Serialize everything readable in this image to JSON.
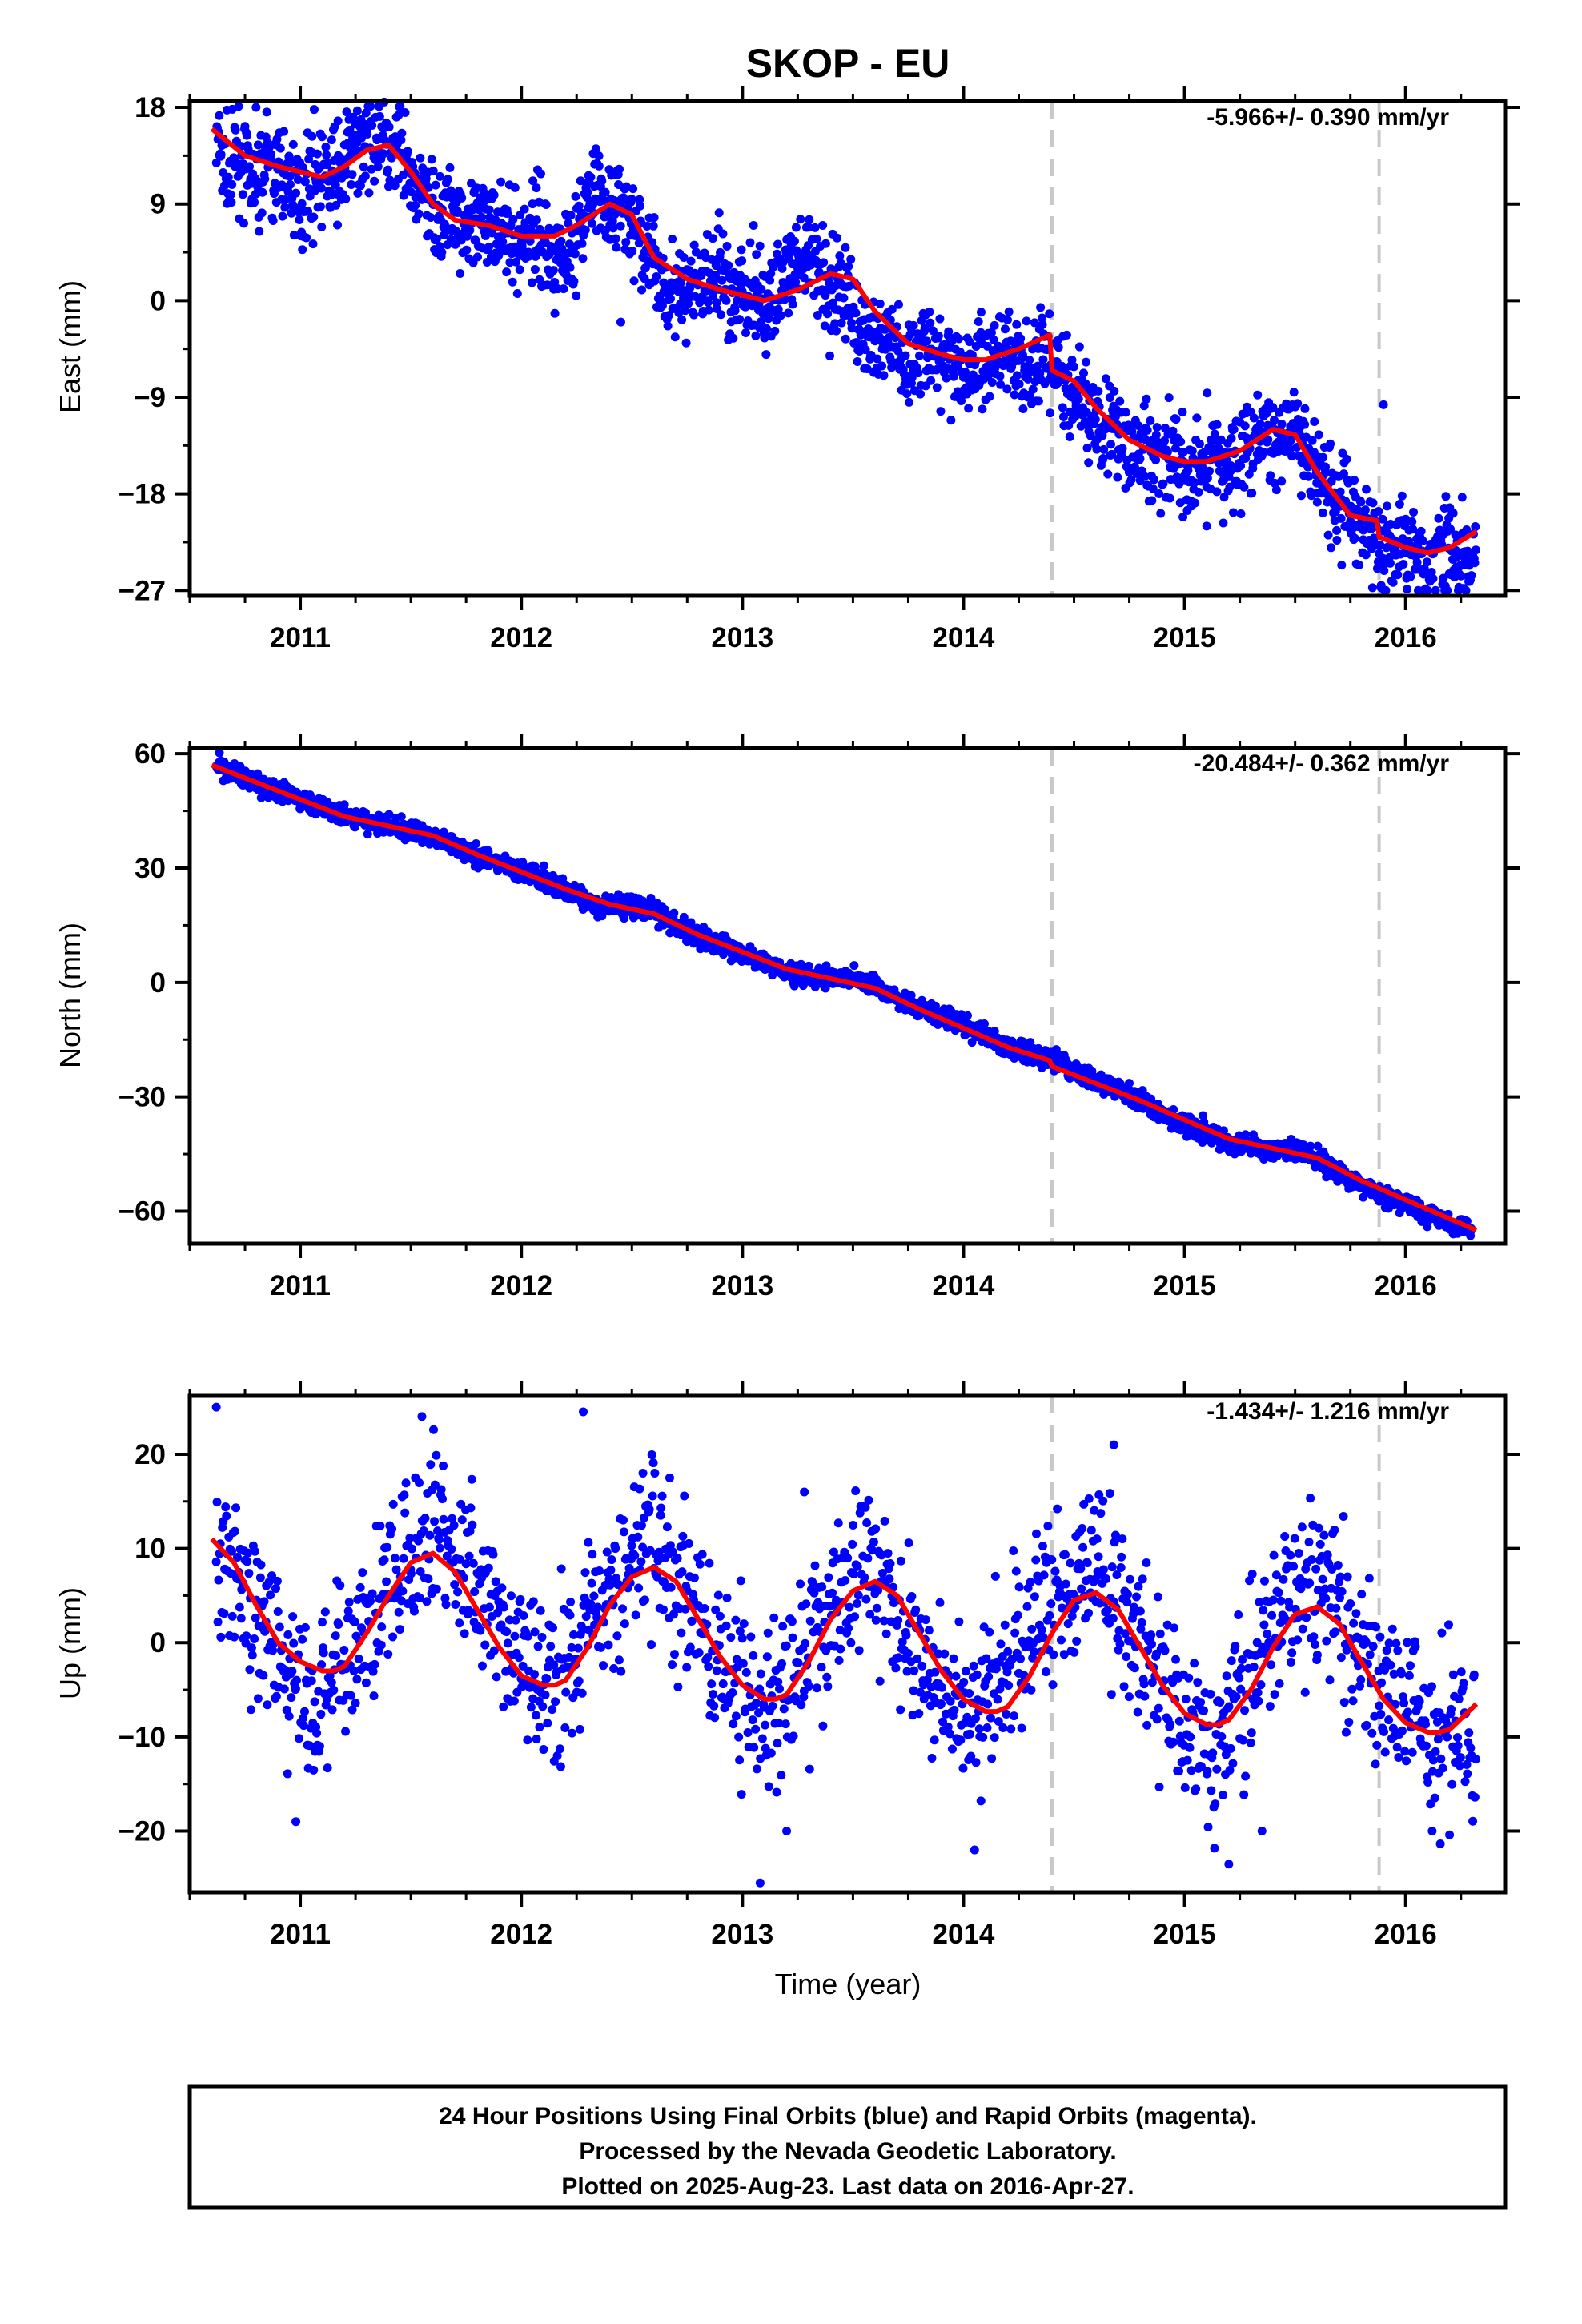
{
  "title": "SKOP - EU",
  "xlabel": "Time (year)",
  "footer": {
    "line1": "24 Hour Positions Using Final Orbits (blue) and Rapid Orbits (magenta).",
    "line2": "Processed by the Nevada Geodetic Laboratory.",
    "line3": "Plotted on 2025-Aug-23. Last data on 2016-Apr-27."
  },
  "colors": {
    "points": "#0000ff",
    "model": "#ff0000",
    "breaks": "#c8c8c8",
    "axes": "#000000"
  },
  "chart_data": [
    {
      "type": "scatter",
      "ylabel": "East (mm)",
      "rate": "-5.966+/- 0.390 mm/yr",
      "xlim": [
        2010.5,
        2016.45
      ],
      "ylim": [
        -27.5,
        18.6
      ],
      "yticks": [
        18,
        9,
        0,
        -9,
        -18,
        -27
      ],
      "ytick_labels": [
        "18",
        "9",
        "0",
        "−9",
        "−18",
        "−27"
      ],
      "xticks": [
        2011,
        2012,
        2013,
        2014,
        2015,
        2016
      ],
      "xtick_labels": [
        "2011",
        "2012",
        "2013",
        "2014",
        "2015",
        "2016"
      ],
      "breaks": [
        2014.4,
        2015.88
      ],
      "series": [
        {
          "kind": "points",
          "x": [
            2010.62,
            2010.65,
            2010.68,
            2010.72,
            2010.76,
            2010.8,
            2010.85,
            2010.9,
            2010.95,
            2011.0,
            2011.05,
            2011.1,
            2011.18,
            2011.25,
            2011.3,
            2011.36,
            2011.4,
            2011.45,
            2011.5,
            2011.55,
            2011.6,
            2011.65,
            2011.7,
            2011.75,
            2011.8,
            2011.85,
            2011.9,
            2011.95,
            2012.0,
            2012.05,
            2012.1,
            2012.15,
            2012.2,
            2012.25,
            2012.3,
            2012.35,
            2012.4,
            2012.45,
            2012.5,
            2012.55,
            2012.6,
            2012.65,
            2012.7,
            2012.75,
            2012.8,
            2012.85,
            2012.9,
            2012.95,
            2013.0,
            2013.05,
            2013.1,
            2013.15,
            2013.2,
            2013.25,
            2013.3,
            2013.35,
            2013.4,
            2013.45,
            2013.5,
            2013.55,
            2013.6,
            2013.65,
            2013.7,
            2013.75,
            2013.8,
            2013.85,
            2013.9,
            2013.95,
            2014.0,
            2014.05,
            2014.1,
            2014.15,
            2014.2,
            2014.25,
            2014.3,
            2014.35,
            2014.42,
            2014.47,
            2014.52,
            2014.57,
            2014.62,
            2014.67,
            2014.72,
            2014.77,
            2014.82,
            2014.87,
            2014.92,
            2014.97,
            2015.02,
            2015.07,
            2015.12,
            2015.17,
            2015.22,
            2015.27,
            2015.32,
            2015.37,
            2015.42,
            2015.47,
            2015.52,
            2015.57,
            2015.62,
            2015.67,
            2015.72,
            2015.77,
            2015.82,
            2015.87,
            2015.9,
            2015.95,
            2016.0,
            2016.05,
            2016.1,
            2016.15,
            2016.2,
            2016.25,
            2016.3,
            2016.32
          ],
          "y": [
            15,
            13,
            11,
            14,
            12,
            10,
            13,
            11,
            12,
            9,
            12,
            11,
            12,
            14,
            15,
            16,
            13,
            14,
            11,
            10,
            9,
            8,
            8,
            7,
            6,
            8,
            7,
            6,
            5,
            7,
            6,
            4,
            5,
            6,
            9,
            10,
            8,
            9,
            7,
            5,
            3,
            2,
            1,
            0,
            2,
            1,
            3,
            0,
            1,
            0,
            -1,
            1,
            3,
            2,
            4,
            3,
            1,
            2,
            -1,
            -3,
            -4,
            -3,
            -5,
            -6,
            -4,
            -5,
            -6,
            -5,
            -7,
            -6,
            -6,
            -5,
            -4,
            -6,
            -7,
            -5,
            -7,
            -8,
            -9,
            -10,
            -11,
            -12,
            -13,
            -14,
            -14,
            -15,
            -14,
            -15,
            -17,
            -15,
            -14,
            -16,
            -15,
            -14,
            -13,
            -12,
            -14,
            -12,
            -13,
            -15,
            -16,
            -18,
            -19,
            -20,
            -21,
            -22,
            -23,
            -24,
            -22,
            -23,
            -25,
            -23,
            -22,
            -24,
            -23,
            -21
          ],
          "outliers": [
            [
              2015.9,
              -9.7
            ],
            [
              2010.8,
              18
            ],
            [
              2011.38,
              18.5
            ],
            [
              2012.45,
              -2
            ],
            [
              2013.05,
              7
            ],
            [
              2015.1,
              -21
            ]
          ]
        },
        {
          "kind": "model",
          "x": [
            2010.6,
            2010.75,
            2010.9,
            2011.0,
            2011.1,
            2011.2,
            2011.3,
            2011.4,
            2011.5,
            2011.6,
            2011.7,
            2011.85,
            2012.0,
            2012.15,
            2012.25,
            2012.4,
            2012.5,
            2012.6,
            2012.75,
            2012.9,
            2013.0,
            2013.1,
            2013.25,
            2013.4,
            2013.5,
            2013.6,
            2013.75,
            2013.9,
            2014.0,
            2014.1,
            2014.25,
            2014.39,
            2014.4,
            2014.5,
            2014.6,
            2014.75,
            2014.9,
            2015.0,
            2015.1,
            2015.25,
            2015.4,
            2015.5,
            2015.6,
            2015.75,
            2015.87,
            2015.88,
            2016.0,
            2016.1,
            2016.2,
            2016.32
          ],
          "y": [
            16,
            13.5,
            12.5,
            12,
            11.5,
            12.5,
            14,
            14.5,
            12,
            9,
            7.5,
            7,
            6,
            6,
            7,
            9,
            8,
            4,
            2,
            1,
            0.5,
            0,
            1,
            2.5,
            2,
            -1,
            -4,
            -5,
            -5.5,
            -5.5,
            -4.5,
            -3.2,
            -6.5,
            -7.5,
            -10,
            -13,
            -14.5,
            -15,
            -15,
            -14,
            -12,
            -12.5,
            -16,
            -20,
            -20.5,
            -22,
            -23,
            -23.5,
            -23,
            -21.5
          ]
        }
      ]
    },
    {
      "type": "scatter",
      "ylabel": "North (mm)",
      "rate": "-20.484+/- 0.362 mm/yr",
      "xlim": [
        2010.5,
        2016.45
      ],
      "ylim": [
        -68.5,
        61.5
      ],
      "yticks": [
        60,
        30,
        0,
        -30,
        -60
      ],
      "ytick_labels": [
        "60",
        "30",
        "0",
        "−30",
        "−60"
      ],
      "xticks": [
        2011,
        2012,
        2013,
        2014,
        2015,
        2016
      ],
      "xtick_labels": [
        "2011",
        "2012",
        "2013",
        "2014",
        "2015",
        "2016"
      ],
      "breaks": [
        2014.4,
        2015.88
      ],
      "series": [
        {
          "kind": "points",
          "x": [
            2010.62,
            2010.7,
            2010.8,
            2010.9,
            2011.0,
            2011.1,
            2011.2,
            2011.3,
            2011.4,
            2011.5,
            2011.6,
            2011.7,
            2011.8,
            2011.9,
            2012.0,
            2012.1,
            2012.2,
            2012.3,
            2012.4,
            2012.5,
            2012.6,
            2012.7,
            2012.8,
            2012.9,
            2013.0,
            2013.1,
            2013.2,
            2013.3,
            2013.4,
            2013.5,
            2013.6,
            2013.7,
            2013.8,
            2013.9,
            2014.0,
            2014.1,
            2014.2,
            2014.3,
            2014.4,
            2014.5,
            2014.6,
            2014.7,
            2014.8,
            2014.9,
            2015.0,
            2015.1,
            2015.2,
            2015.3,
            2015.4,
            2015.5,
            2015.6,
            2015.7,
            2015.8,
            2015.9,
            2016.0,
            2016.1,
            2016.2,
            2016.3
          ],
          "y": [
            57,
            55,
            52,
            50,
            48,
            46,
            44,
            42,
            41,
            40,
            38,
            36,
            33,
            31,
            29,
            27,
            24,
            21,
            20,
            20,
            19,
            15,
            12,
            10,
            8,
            5,
            3,
            2,
            1,
            1,
            -1,
            -4,
            -7,
            -9,
            -11,
            -14,
            -17,
            -19,
            -20,
            -23,
            -26,
            -28,
            -31,
            -34,
            -37,
            -39,
            -42,
            -43,
            -44,
            -44,
            -46,
            -50,
            -53,
            -56,
            -58,
            -61,
            -63,
            -65
          ],
          "outliers": []
        },
        {
          "kind": "model",
          "x": [
            2010.6,
            2010.8,
            2011.0,
            2011.2,
            2011.4,
            2011.6,
            2011.8,
            2012.0,
            2012.2,
            2012.4,
            2012.6,
            2012.8,
            2013.0,
            2013.2,
            2013.4,
            2013.6,
            2013.8,
            2014.0,
            2014.2,
            2014.39,
            2014.4,
            2014.6,
            2014.8,
            2015.0,
            2015.2,
            2015.4,
            2015.6,
            2015.8,
            2016.0,
            2016.2,
            2016.32
          ],
          "y": [
            57,
            52.5,
            48,
            43.5,
            41,
            38.5,
            33.5,
            29,
            24.5,
            20.5,
            18,
            12.5,
            8,
            3.5,
            1,
            -1.5,
            -7,
            -12,
            -17,
            -20.5,
            -22,
            -26.5,
            -31,
            -36,
            -41,
            -43.5,
            -46,
            -52,
            -57,
            -62,
            -65
          ]
        }
      ]
    },
    {
      "type": "scatter",
      "ylabel": "Up (mm)",
      "rate": "-1.434+/- 1.216 mm/yr",
      "xlim": [
        2010.5,
        2016.45
      ],
      "ylim": [
        -26.5,
        26.2
      ],
      "yticks": [
        20,
        10,
        0,
        -10,
        -20
      ],
      "ytick_labels": [
        "20",
        "10",
        "0",
        "−10",
        "−20"
      ],
      "xticks": [
        2011,
        2012,
        2013,
        2014,
        2015,
        2016
      ],
      "xtick_labels": [
        "2011",
        "2012",
        "2013",
        "2014",
        "2015",
        "2016"
      ],
      "breaks": [
        2014.4,
        2015.88
      ],
      "series": [
        {
          "kind": "points",
          "x": [
            2010.62,
            2010.68,
            2010.74,
            2010.8,
            2010.86,
            2010.92,
            2010.98,
            2011.04,
            2011.1,
            2011.16,
            2011.22,
            2011.3,
            2011.38,
            2011.46,
            2011.54,
            2011.6,
            2011.66,
            2011.72,
            2011.8,
            2011.88,
            2011.96,
            2012.04,
            2012.12,
            2012.2,
            2012.28,
            2012.36,
            2012.44,
            2012.52,
            2012.6,
            2012.66,
            2012.72,
            2012.8,
            2012.88,
            2012.96,
            2013.04,
            2013.12,
            2013.2,
            2013.28,
            2013.36,
            2013.44,
            2013.52,
            2013.6,
            2013.66,
            2013.72,
            2013.8,
            2013.88,
            2013.96,
            2014.04,
            2014.12,
            2014.2,
            2014.28,
            2014.36,
            2014.44,
            2014.52,
            2014.6,
            2014.66,
            2014.72,
            2014.8,
            2014.88,
            2014.96,
            2015.04,
            2015.12,
            2015.2,
            2015.28,
            2015.36,
            2015.44,
            2015.52,
            2015.6,
            2015.66,
            2015.72,
            2015.8,
            2015.88,
            2015.96,
            2016.04,
            2016.12,
            2016.2,
            2016.28,
            2016.32
          ],
          "y": [
            10,
            8,
            6,
            2,
            0,
            -3,
            -6,
            -8,
            -5,
            -2,
            -1,
            2,
            5,
            9,
            12,
            13,
            11,
            8,
            6,
            3,
            -1,
            -3,
            -5,
            -2,
            0,
            3,
            7,
            10,
            11,
            9,
            6,
            2,
            -1,
            -4,
            -6,
            -7,
            -5,
            -1,
            3,
            6,
            8,
            7,
            4,
            1,
            -2,
            -5,
            -7,
            -8,
            -6,
            -3,
            1,
            4,
            6,
            8,
            9,
            6,
            3,
            -1,
            -4,
            -7,
            -9,
            -10,
            -8,
            -5,
            -1,
            3,
            6,
            7,
            5,
            2,
            -2,
            -5,
            -7,
            -9,
            -10,
            -11,
            -8,
            -6
          ],
          "outliers": [
            [
              2010.62,
              25
            ],
            [
              2011.55,
              24
            ],
            [
              2012.28,
              24.5
            ],
            [
              2010.98,
              -19
            ],
            [
              2013.08,
              -25.5
            ],
            [
              2013.2,
              -20
            ],
            [
              2014.05,
              -22
            ],
            [
              2015.2,
              -23.5
            ],
            [
              2015.35,
              -20
            ],
            [
              2016.12,
              -20
            ],
            [
              2014.68,
              21
            ],
            [
              2012.55,
              18
            ],
            [
              2013.28,
              16
            ]
          ]
        },
        {
          "kind": "model",
          "x": [
            2010.6,
            2010.7,
            2010.8,
            2010.9,
            2011.0,
            2011.1,
            2011.15,
            2011.2,
            2011.3,
            2011.4,
            2011.5,
            2011.6,
            2011.7,
            2011.8,
            2011.9,
            2012.0,
            2012.1,
            2012.15,
            2012.2,
            2012.3,
            2012.4,
            2012.5,
            2012.6,
            2012.7,
            2012.8,
            2012.9,
            2013.0,
            2013.1,
            2013.15,
            2013.2,
            2013.3,
            2013.4,
            2013.5,
            2013.6,
            2013.7,
            2013.8,
            2013.9,
            2014.0,
            2014.1,
            2014.15,
            2014.2,
            2014.3,
            2014.4,
            2014.5,
            2014.6,
            2014.7,
            2014.8,
            2014.9,
            2015.0,
            2015.1,
            2015.15,
            2015.2,
            2015.3,
            2015.4,
            2015.5,
            2015.6,
            2015.7,
            2015.8,
            2015.9,
            2016.0,
            2016.1,
            2016.15,
            2016.2,
            2016.32
          ],
          "y": [
            11,
            8.5,
            4,
            0,
            -2,
            -3,
            -3,
            -2.5,
            1,
            5,
            8.5,
            9.5,
            7.5,
            3.5,
            -0.5,
            -3.5,
            -4.5,
            -4.5,
            -4,
            -0.5,
            4,
            7,
            8,
            6.5,
            2.5,
            -1.5,
            -4.5,
            -6,
            -6,
            -5.5,
            -2,
            2.5,
            5.5,
            6.5,
            5,
            1,
            -3,
            -6,
            -7.3,
            -7.3,
            -6.8,
            -3.5,
            1,
            4.5,
            5.3,
            3.5,
            -0.5,
            -4.5,
            -7.5,
            -8.7,
            -8.7,
            -8.2,
            -5,
            -0.5,
            3,
            3.8,
            2,
            -2,
            -6,
            -8.5,
            -9.5,
            -9.5,
            -9.2,
            -6.5
          ]
        }
      ]
    }
  ]
}
